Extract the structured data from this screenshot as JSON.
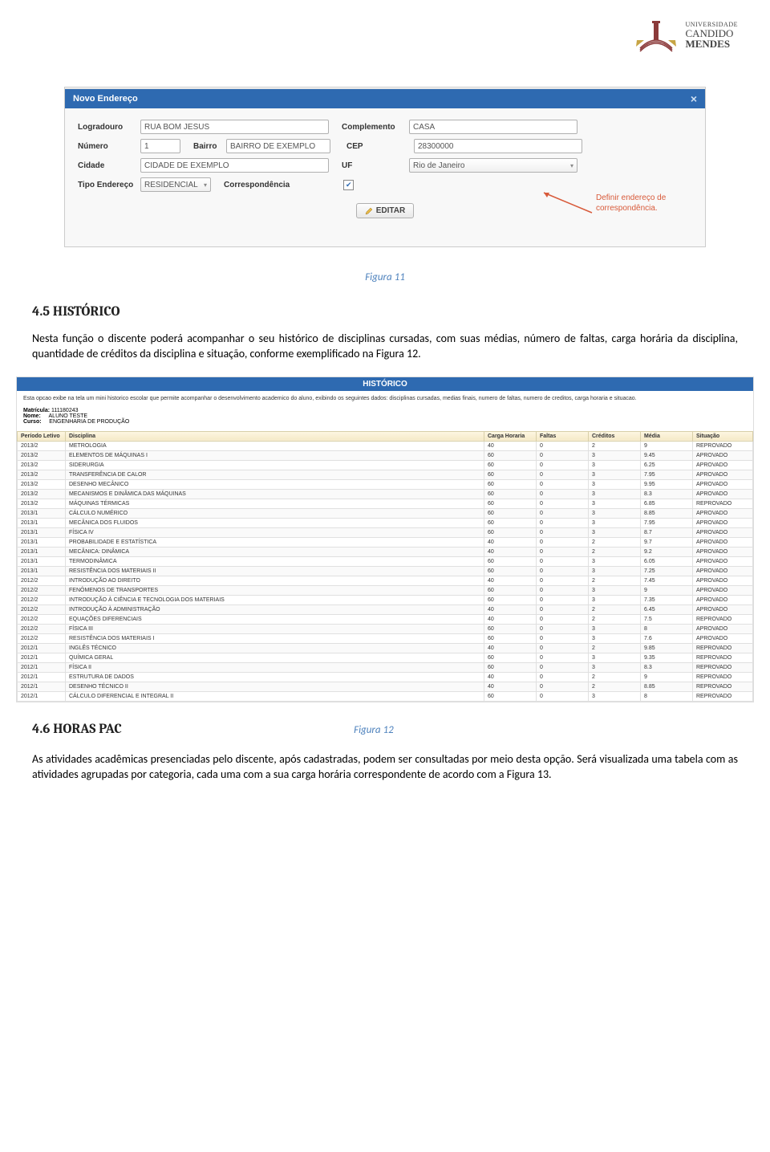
{
  "logo": {
    "top": "UNIVERSIDADE",
    "mid": "CANDIDO",
    "bot": "MENDES",
    "tower_color": "#8b3a3a",
    "wing_color": "#c7a545"
  },
  "dialog": {
    "title": "Novo Endereço",
    "top_strip": "",
    "fields": {
      "logradouro_label": "Logradouro",
      "logradouro_value": "RUA BOM JESUS",
      "complemento_label": "Complemento",
      "complemento_value": "CASA",
      "numero_label": "Número",
      "numero_value": "1",
      "bairro_label": "Bairro",
      "bairro_value": "BAIRRO DE EXEMPLO",
      "cep_label": "CEP",
      "cep_value": "28300000",
      "cidade_label": "Cidade",
      "cidade_value": "CIDADE DE EXEMPLO",
      "uf_label": "UF",
      "uf_value": "Rio de Janeiro",
      "tipo_label": "Tipo Endereço",
      "tipo_value": "RESIDENCIAL",
      "corr_label": "Correspondência",
      "corr_checked": true
    },
    "edit_button": "EDITAR",
    "callout": "Definir endereço de correspondência."
  },
  "caption1": "Figura 11",
  "sect45_heading": "4.5 HISTÓRICO",
  "sect45_para": "Nesta função o discente poderá acompanhar o seu histórico de disciplinas cursadas, com suas médias, número de faltas, carga horária da disciplina, quantidade de créditos da disciplina e situação, conforme exemplificado na Figura 12.",
  "hist": {
    "panel_title": "HISTÓRICO",
    "desc": "Esta opcao exibe na tela um mini historico escolar que permite acompanhar o desenvolvimento academico do aluno, exibindo os seguintes dados: disciplinas cursadas, medias finais, numero de faltas, numero de creditos, carga horaria e situacao.",
    "matricula_label": "Matrícula:",
    "matricula": "111180243",
    "nome_label": "Nome:",
    "nome": "ALUNO TESTE",
    "curso_label": "Curso:",
    "curso": "ENGENHARIA DE PRODUÇÃO",
    "columns": [
      "Período Letivo",
      "Disciplina",
      "Carga Horaria",
      "Faltas",
      "Créditos",
      "Média",
      "Situação"
    ],
    "rows": [
      [
        "2013/2",
        "METROLOGIA",
        "40",
        "0",
        "2",
        "9",
        "REPROVADO"
      ],
      [
        "2013/2",
        "ELEMENTOS DE MÁQUINAS I",
        "60",
        "0",
        "3",
        "9.45",
        "APROVADO"
      ],
      [
        "2013/2",
        "SIDERURGIA",
        "60",
        "0",
        "3",
        "6.25",
        "APROVADO"
      ],
      [
        "2013/2",
        "TRANSFERÊNCIA DE CALOR",
        "60",
        "0",
        "3",
        "7.95",
        "APROVADO"
      ],
      [
        "2013/2",
        "DESENHO MECÂNICO",
        "60",
        "0",
        "3",
        "9.95",
        "APROVADO"
      ],
      [
        "2013/2",
        "MECANISMOS E DINÂMICA DAS MÁQUINAS",
        "60",
        "0",
        "3",
        "8.3",
        "APROVADO"
      ],
      [
        "2013/2",
        "MÁQUINAS TÉRMICAS",
        "60",
        "0",
        "3",
        "6.85",
        "REPROVADO"
      ],
      [
        "2013/1",
        "CÁLCULO NUMÉRICO",
        "60",
        "0",
        "3",
        "8.85",
        "APROVADO"
      ],
      [
        "2013/1",
        "MECÂNICA DOS FLUIDOS",
        "60",
        "0",
        "3",
        "7.95",
        "APROVADO"
      ],
      [
        "2013/1",
        "FÍSICA IV",
        "60",
        "0",
        "3",
        "8.7",
        "APROVADO"
      ],
      [
        "2013/1",
        "PROBABILIDADE E ESTATÍSTICA",
        "40",
        "0",
        "2",
        "9.7",
        "APROVADO"
      ],
      [
        "2013/1",
        "MECÂNICA: DINÂMICA",
        "40",
        "0",
        "2",
        "9.2",
        "APROVADO"
      ],
      [
        "2013/1",
        "TERMODINÂMICA",
        "60",
        "0",
        "3",
        "6.05",
        "APROVADO"
      ],
      [
        "2013/1",
        "RESISTÊNCIA DOS MATERIAIS II",
        "60",
        "0",
        "3",
        "7.25",
        "APROVADO"
      ],
      [
        "2012/2",
        "INTRODUÇÃO AO DIREITO",
        "40",
        "0",
        "2",
        "7.45",
        "APROVADO"
      ],
      [
        "2012/2",
        "FENÔMENOS DE TRANSPORTES",
        "60",
        "0",
        "3",
        "9",
        "APROVADO"
      ],
      [
        "2012/2",
        "INTRODUÇÃO À CIÊNCIA E TECNOLOGIA DOS MATERIAIS",
        "60",
        "0",
        "3",
        "7.35",
        "APROVADO"
      ],
      [
        "2012/2",
        "INTRODUÇÃO À ADMINISTRAÇÃO",
        "40",
        "0",
        "2",
        "6.45",
        "APROVADO"
      ],
      [
        "2012/2",
        "EQUAÇÕES DIFERENCIAIS",
        "40",
        "0",
        "2",
        "7.5",
        "REPROVADO"
      ],
      [
        "2012/2",
        "FÍSICA III",
        "60",
        "0",
        "3",
        "8",
        "APROVADO"
      ],
      [
        "2012/2",
        "RESISTÊNCIA DOS MATERIAIS I",
        "60",
        "0",
        "3",
        "7.6",
        "APROVADO"
      ],
      [
        "2012/1",
        "INGLÊS TÉCNICO",
        "40",
        "0",
        "2",
        "9.85",
        "REPROVADO"
      ],
      [
        "2012/1",
        "QUÍMICA GERAL",
        "60",
        "0",
        "3",
        "9.35",
        "REPROVADO"
      ],
      [
        "2012/1",
        "FÍSICA II",
        "60",
        "0",
        "3",
        "8.3",
        "REPROVADO"
      ],
      [
        "2012/1",
        "ESTRUTURA DE DADOS",
        "40",
        "0",
        "2",
        "9",
        "REPROVADO"
      ],
      [
        "2012/1",
        "DESENHO TÉCNICO II",
        "40",
        "0",
        "2",
        "8.85",
        "REPROVADO"
      ],
      [
        "2012/1",
        "CÁLCULO DIFERENCIAL E INTEGRAL II",
        "60",
        "0",
        "3",
        "8",
        "REPROVADO"
      ]
    ]
  },
  "caption2": "Figura 12",
  "sect46_heading": "4.6 HORAS PAC",
  "sect46_para": "As atividades acadêmicas presenciadas pelo discente, após cadastradas, podem ser consultadas por meio desta opção. Será visualizada uma tabela com as atividades agrupadas por categoria, cada uma com a sua carga horária correspondente de acordo com a Figura 13."
}
